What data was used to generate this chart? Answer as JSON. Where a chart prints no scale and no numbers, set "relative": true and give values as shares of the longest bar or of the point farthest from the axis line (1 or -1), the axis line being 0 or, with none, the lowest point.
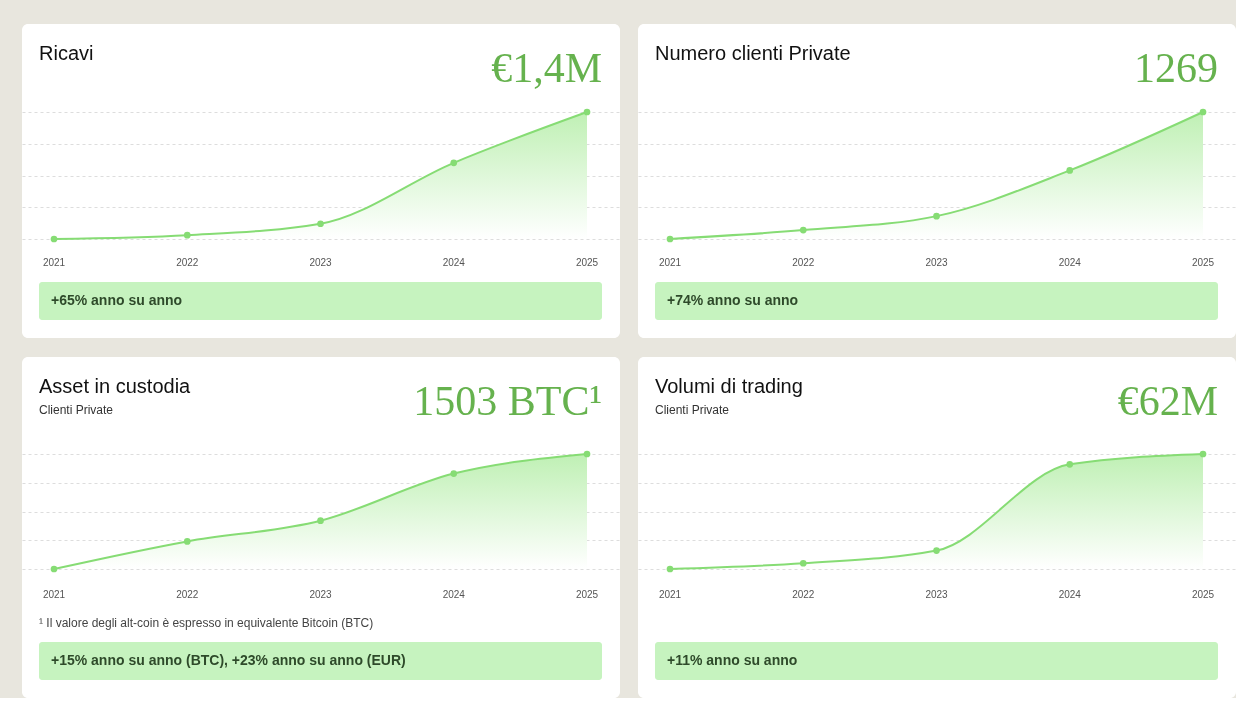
{
  "chart_data": [
    {
      "type": "area",
      "title": "Ricavi",
      "categories": [
        "2021",
        "2022",
        "2023",
        "2024",
        "2025"
      ],
      "relative": true,
      "color": "#86dc74",
      "marker": "circle",
      "grid": "y",
      "line_style": "solid",
      "values": [
        0,
        0.03,
        0.12,
        0.6,
        1
      ],
      "annotations": [
        "€1,4M",
        "+65% anno su anno"
      ]
    },
    {
      "type": "area",
      "title": "Numero clienti Private",
      "categories": [
        "2021",
        "2022",
        "2023",
        "2024",
        "2025"
      ],
      "relative": true,
      "color": "#86dc74",
      "marker": "circle",
      "grid": "y",
      "line_style": "solid",
      "values": [
        0,
        0.07,
        0.18,
        0.54,
        1
      ],
      "annotations": [
        "1269",
        "+74% anno su anno"
      ]
    },
    {
      "type": "area",
      "title": "Asset in custodia",
      "subtitle": "Clienti Private",
      "categories": [
        "2021",
        "2022",
        "2023",
        "2024",
        "2025"
      ],
      "relative": true,
      "color": "#86dc74",
      "marker": "circle",
      "grid": "y",
      "line_style": "solid",
      "values": [
        0,
        0.24,
        0.42,
        0.83,
        1
      ],
      "annotations": [
        "1503 BTC¹",
        "¹ Il valore degli alt-coin è espresso in equivalente Bitcoin (BTC)",
        "+15% anno su anno (BTC), +23% anno su anno (EUR)"
      ]
    },
    {
      "type": "area",
      "title": "Volumi di trading",
      "subtitle": "Clienti Private",
      "categories": [
        "2021",
        "2022",
        "2023",
        "2024",
        "2025"
      ],
      "relative": true,
      "color": "#86dc74",
      "marker": "circle",
      "grid": "y",
      "line_style": "solid",
      "values": [
        0,
        0.05,
        0.16,
        0.91,
        1
      ],
      "annotations": [
        "€62M",
        "+11% anno su anno"
      ]
    }
  ]
}
